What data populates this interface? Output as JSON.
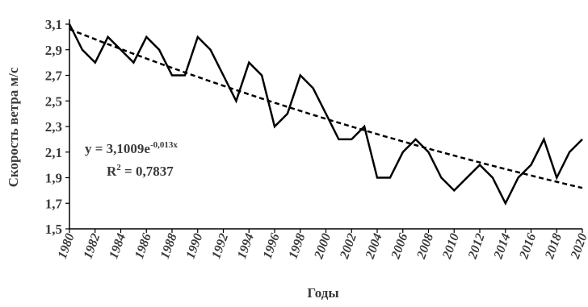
{
  "chart_data": {
    "type": "line",
    "xlabel": "Годы",
    "ylabel": "Скорость ветра м/с",
    "ylim": [
      1.5,
      3.1
    ],
    "xlim": [
      1980,
      2020
    ],
    "yticks": [
      "1,5",
      "1,7",
      "1,9",
      "2,1",
      "2,3",
      "2,5",
      "2,7",
      "2,9",
      "3,1"
    ],
    "yticks_values": [
      1.5,
      1.7,
      1.9,
      2.1,
      2.3,
      2.5,
      2.7,
      2.9,
      3.1
    ],
    "xticks": [
      "1980",
      "1982",
      "1984",
      "1986",
      "1988",
      "1990",
      "1992",
      "1994",
      "1996",
      "1998",
      "2000",
      "2002",
      "2004",
      "2006",
      "2008",
      "2010",
      "2012",
      "2014",
      "2016",
      "2018",
      "2020"
    ],
    "grid": false,
    "legend": "none",
    "series": [
      {
        "x": [
          1980,
          1981,
          1982,
          1983,
          1984,
          1985,
          1986,
          1987,
          1988,
          1989,
          1990,
          1991,
          1992,
          1993,
          1994,
          1995,
          1996,
          1997,
          1998,
          1999,
          2000,
          2001,
          2002,
          2003,
          2004,
          2005,
          2006,
          2007,
          2008,
          2009,
          2010,
          2011,
          2012,
          2013,
          2014,
          2015,
          2016,
          2017,
          2018,
          2019,
          2020
        ],
        "values": [
          3.1,
          2.9,
          2.8,
          3.0,
          2.9,
          2.8,
          3.0,
          2.9,
          2.7,
          2.7,
          3.0,
          2.9,
          2.7,
          2.5,
          2.8,
          2.7,
          2.3,
          2.4,
          2.7,
          2.6,
          2.4,
          2.2,
          2.2,
          2.3,
          1.9,
          1.9,
          2.1,
          2.2,
          2.1,
          1.9,
          1.8,
          1.9,
          2.0,
          1.9,
          1.7,
          1.9,
          2.0,
          2.2,
          1.9,
          2.1,
          2.2
        ],
        "color": "#000000",
        "style": "solid"
      }
    ],
    "trendline": {
      "type": "exponential",
      "style": "dashed",
      "color": "#000000",
      "a": 3.1009,
      "b": -0.013,
      "equation_main": "y = 3,1009e",
      "equation_exp": "-0,013x",
      "r2_main": "R",
      "r2_sup": "2",
      "r2_rest": " = 0,7837"
    }
  }
}
